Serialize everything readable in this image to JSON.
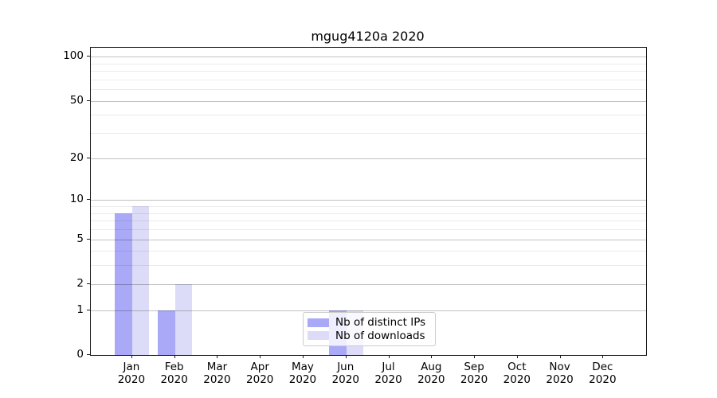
{
  "chart_data": {
    "type": "bar",
    "title": "mgug4120a 2020",
    "scale": "log1p",
    "ylim": [
      0,
      115
    ],
    "grid": true,
    "legend_position": "bottom-center",
    "year": "2020",
    "categories": [
      "Jan",
      "Feb",
      "Mar",
      "Apr",
      "May",
      "Jun",
      "Jul",
      "Aug",
      "Sep",
      "Oct",
      "Nov",
      "Dec"
    ],
    "yticks": [
      0,
      1,
      2,
      5,
      10,
      20,
      50,
      100
    ],
    "minor_gridlines": [
      3,
      4,
      6,
      7,
      8,
      9,
      30,
      40,
      60,
      70,
      80,
      90
    ],
    "series": [
      {
        "name": "Nb of distinct IPs",
        "color": "#a9a9f7",
        "values": [
          8,
          1,
          0,
          0,
          0,
          1,
          0,
          0,
          0,
          0,
          0,
          0
        ]
      },
      {
        "name": "Nb of downloads",
        "color": "#dcdcf8",
        "values": [
          9,
          2,
          0,
          0,
          0,
          1,
          0,
          0,
          0,
          0,
          0,
          0
        ]
      }
    ]
  },
  "colors": {
    "axis": "#1a1a1a",
    "major_grid": "rgba(0,0,0,0.24)",
    "minor_grid": "rgba(0,0,0,0.08)",
    "background": "#ffffff"
  }
}
